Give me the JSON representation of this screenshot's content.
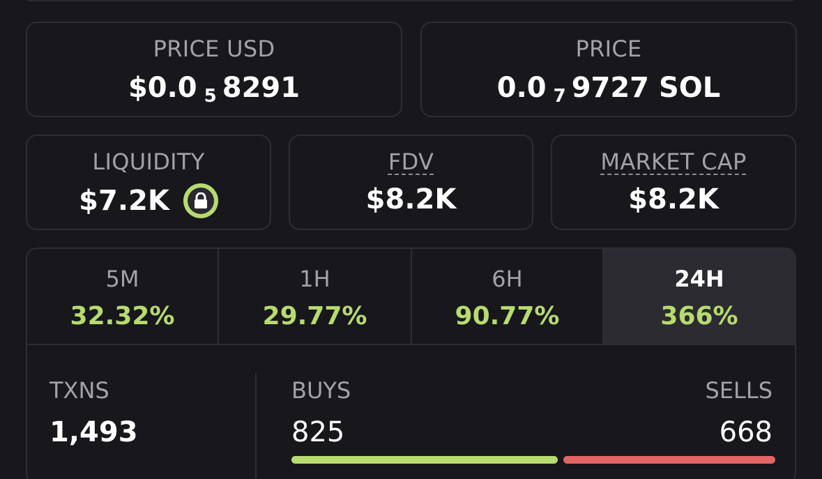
{
  "price_usd": {
    "label": "PRICE USD",
    "prefix": "$0.0",
    "subscript": "5",
    "digits": "8291"
  },
  "price_sol": {
    "label": "PRICE",
    "prefix": "0.0",
    "subscript": "7",
    "digits": "9727 SOL"
  },
  "liquidity": {
    "label": "LIQUIDITY",
    "value": "$7.2K",
    "icon": "lock-icon"
  },
  "fdv": {
    "label": "FDV",
    "value": "$8.2K"
  },
  "market_cap": {
    "label": "MARKET CAP",
    "value": "$8.2K"
  },
  "tabs": [
    {
      "label": "5M",
      "value": "32.32%"
    },
    {
      "label": "1H",
      "value": "29.77%"
    },
    {
      "label": "6H",
      "value": "90.77%"
    },
    {
      "label": "24H",
      "value": "366%",
      "active": true
    }
  ],
  "txns": {
    "label": "TXNS",
    "value": "1,493"
  },
  "buys": {
    "label": "BUYS",
    "value": "825"
  },
  "sells": {
    "label": "SELLS",
    "value": "668"
  },
  "colors": {
    "positive": "#b7db6f",
    "negative": "#e36466",
    "background": "#18171c",
    "border": "#2e2d35",
    "muted": "#a3a2aa",
    "active_tab": "#2c2b32"
  }
}
